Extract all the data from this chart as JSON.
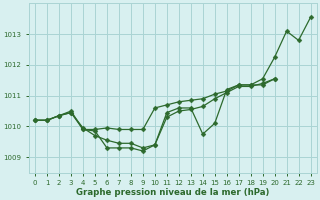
{
  "title": "Graphe pression niveau de la mer (hPa)",
  "hours": [
    0,
    1,
    2,
    3,
    4,
    5,
    6,
    7,
    8,
    9,
    10,
    11,
    12,
    13,
    14,
    15,
    16,
    17,
    18,
    19,
    20,
    21,
    22,
    23
  ],
  "line1": [
    1010.2,
    1010.2,
    1010.35,
    1010.5,
    1009.9,
    1009.85,
    1009.3,
    1009.3,
    1009.3,
    1009.2,
    1009.4,
    1010.45,
    1010.6,
    1010.6,
    1009.75,
    1010.1,
    1011.2,
    1011.35,
    1011.35,
    1011.55,
    1012.25,
    1013.1,
    1012.8,
    1013.55
  ],
  "line2": [
    1010.2,
    1010.2,
    1010.35,
    1010.45,
    1009.9,
    1009.9,
    1009.95,
    1009.9,
    1009.9,
    1009.9,
    1010.6,
    1010.7,
    1010.8,
    1010.85,
    1010.9,
    1011.05,
    1011.15,
    1011.35,
    1011.35,
    1011.35,
    1011.55,
    null,
    null,
    null
  ],
  "line3": [
    1010.2,
    1010.2,
    1010.35,
    1010.45,
    1009.95,
    1009.7,
    1009.55,
    1009.45,
    1009.45,
    1009.3,
    1009.4,
    1010.3,
    1010.5,
    1010.55,
    1010.65,
    1010.9,
    1011.1,
    1011.3,
    1011.3,
    1011.4,
    1011.55,
    null,
    null,
    null
  ],
  "bg_color": "#d8f0f0",
  "line_color": "#2d6a2d",
  "grid_color": "#aad4d4",
  "ylim": [
    1008.5,
    1014.0
  ],
  "xlim": [
    -0.5,
    23.5
  ],
  "yticks": [
    1009,
    1010,
    1011,
    1012,
    1013
  ],
  "xticks": [
    0,
    1,
    2,
    3,
    4,
    5,
    6,
    7,
    8,
    9,
    10,
    11,
    12,
    13,
    14,
    15,
    16,
    17,
    18,
    19,
    20,
    21,
    22,
    23
  ]
}
